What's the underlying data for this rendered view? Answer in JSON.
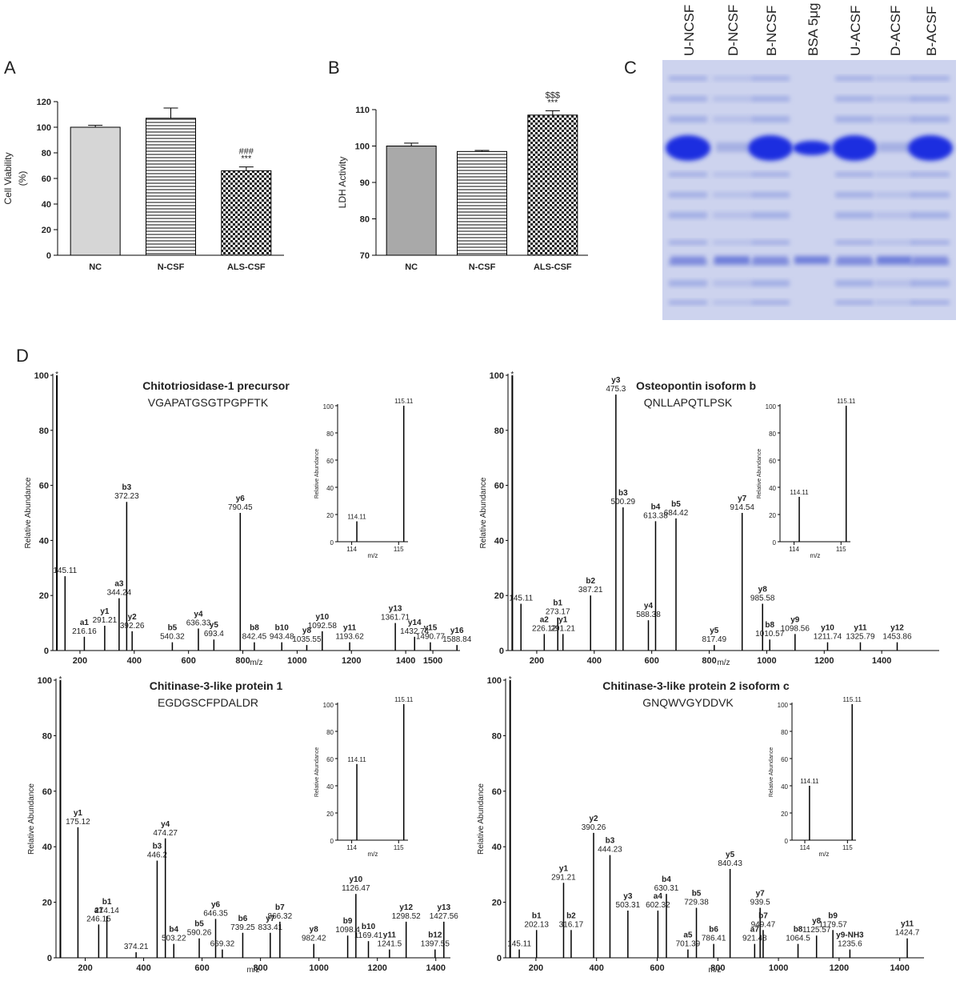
{
  "panel_labels": [
    "A",
    "B",
    "C",
    "D"
  ],
  "gel_lanes": [
    "U-NCSF",
    "D-NCSF",
    "B-NCSF",
    "BSA 5μg",
    "U-ACSF",
    "D-ACSF",
    "B-ACSF"
  ],
  "chart_data": [
    {
      "type": "bar",
      "ylabel": [
        "Cell Viability",
        "(%)"
      ],
      "categories": [
        "NC",
        "N-CSF",
        "ALS-CSF"
      ],
      "values": [
        100,
        107,
        66
      ],
      "errors": [
        1.5,
        8,
        3
      ],
      "color": "#d6d6d6",
      "patterns": [
        "solid",
        "hstripe",
        "checker"
      ],
      "marks_above": [
        [],
        [],
        [
          "###",
          "***"
        ]
      ],
      "ylim": [
        0,
        120
      ],
      "yticks": [
        0,
        20,
        40,
        60,
        80,
        100,
        120
      ]
    },
    {
      "type": "bar",
      "ylabel": [
        "LDH Activity"
      ],
      "categories": [
        "NC",
        "N-CSF",
        "ALS-CSF"
      ],
      "values": [
        100,
        98.5,
        108.5
      ],
      "errors": [
        0.8,
        0.3,
        1.2
      ],
      "color": "#a9a9a9",
      "patterns": [
        "solid",
        "hstripe",
        "checker"
      ],
      "marks_above": [
        [],
        [],
        [
          "$$$",
          "***"
        ]
      ],
      "ylim": [
        70,
        110
      ],
      "yticks": [
        70,
        80,
        90,
        100,
        110
      ]
    },
    {
      "type": "stem",
      "title": "Chitotriosidase-1 precursor",
      "subtitle": "VGAPATGSGTPGPFTK",
      "xlabel": "m/z",
      "ylabel": "Relative Abundance",
      "reporter": {
        "x": 115,
        "y": 100,
        "label": "*"
      },
      "xlim": [
        100,
        1600
      ],
      "ylim": [
        0,
        100
      ],
      "xticks": [
        200,
        400,
        600,
        800,
        1000,
        1200,
        1400,
        1500
      ],
      "yticks": [
        0,
        20,
        40,
        60,
        80,
        100
      ],
      "peaks": [
        {
          "x": 145.11,
          "y": 27
        },
        {
          "ion": "a1",
          "x": 216.16,
          "y": 5
        },
        {
          "ion": "y1",
          "x": 291.21,
          "y": 9
        },
        {
          "ion": "a3",
          "x": 344.24,
          "y": 19
        },
        {
          "ion": "b3",
          "x": 372.23,
          "y": 54
        },
        {
          "ion": "y2",
          "x": 392.26,
          "y": 7
        },
        {
          "ion": "b5",
          "x": 540.32,
          "y": 3
        },
        {
          "ion": "y4",
          "x": 636.33,
          "y": 8
        },
        {
          "ion": "y5",
          "x": 693.4,
          "y": 4
        },
        {
          "ion": "y6",
          "x": 790.45,
          "y": 50
        },
        {
          "ion": "b8",
          "x": 842.45,
          "y": 3
        },
        {
          "ion": "b10",
          "x": 943.48,
          "y": 3
        },
        {
          "ion": "y8",
          "x": 1035.55,
          "y": 2
        },
        {
          "ion": "y10",
          "x": 1092.58,
          "y": 7
        },
        {
          "ion": "y11",
          "x": 1193.62,
          "y": 3
        },
        {
          "ion": "y13",
          "x": 1361.71,
          "y": 10
        },
        {
          "ion": "y14",
          "x": 1432.74,
          "y": 5
        },
        {
          "ion": "y15",
          "x": 1490.77,
          "y": 3
        },
        {
          "ion": "y16",
          "x": 1588.84,
          "y": 2
        }
      ]
    },
    {
      "type": "stem",
      "title": "Osteopontin isoform b",
      "subtitle": "QNLLAPQTLPSK",
      "xlabel": "m/z",
      "ylabel": "Relative Abundance",
      "reporter": {
        "x": 115,
        "y": 100,
        "label": "*"
      },
      "xlim": [
        100,
        1600
      ],
      "ylim": [
        0,
        100
      ],
      "xticks": [
        200,
        400,
        600,
        800,
        1000,
        1200,
        1400
      ],
      "yticks": [
        0,
        20,
        40,
        60,
        80,
        100
      ],
      "peaks": [
        {
          "x": 145.11,
          "y": 17
        },
        {
          "ion": "a2",
          "x": 226.12,
          "y": 6
        },
        {
          "ion": "b1",
          "x": 273.17,
          "y": 12
        },
        {
          "ion": "y1",
          "x": 291.21,
          "y": 6
        },
        {
          "ion": "b2",
          "x": 387.21,
          "y": 20
        },
        {
          "ion": "y3",
          "x": 475.3,
          "y": 93
        },
        {
          "ion": "b3",
          "x": 500.29,
          "y": 52
        },
        {
          "ion": "y4",
          "x": 588.38,
          "y": 11
        },
        {
          "ion": "b4",
          "x": 613.38,
          "y": 47
        },
        {
          "ion": "b5",
          "x": 684.42,
          "y": 48
        },
        {
          "ion": "y5",
          "x": 817.49,
          "y": 2
        },
        {
          "ion": "y7",
          "x": 914.54,
          "y": 50
        },
        {
          "ion": "y8",
          "x": 985.58,
          "y": 17
        },
        {
          "ion": "b8",
          "x": 1010.57,
          "y": 4
        },
        {
          "ion": "y9",
          "x": 1098.56,
          "y": 6
        },
        {
          "ion": "y10",
          "x": 1211.74,
          "y": 3
        },
        {
          "ion": "y11",
          "x": 1325.79,
          "y": 3
        },
        {
          "ion": "y12",
          "x": 1453.86,
          "y": 3
        }
      ]
    },
    {
      "type": "stem",
      "title": "Chitinase-3-like protein 1",
      "subtitle": "EGDGSCFPDALDR",
      "xlabel": "m/z",
      "ylabel": "Relative Abundance",
      "reporter": {
        "x": 115,
        "y": 100,
        "label": "*"
      },
      "xlim": [
        100,
        1450
      ],
      "ylim": [
        0,
        100
      ],
      "xticks": [
        200,
        400,
        600,
        800,
        1000,
        1200,
        1400
      ],
      "yticks": [
        0,
        20,
        40,
        60,
        80,
        100
      ],
      "peaks": [
        {
          "ion": "y1",
          "x": 175.12,
          "y": 47
        },
        {
          "ion": "a1",
          "x": 246.15,
          "y": 12
        },
        {
          "ion": "b1",
          "x": 274.14,
          "y": 15
        },
        {
          "x": 374.21,
          "y": 2
        },
        {
          "ion": "b3",
          "x": 446.2,
          "y": 35
        },
        {
          "ion": "y4",
          "x": 474.27,
          "y": 43
        },
        {
          "ion": "b4",
          "x": 503.22,
          "y": 5
        },
        {
          "ion": "b5",
          "x": 590.26,
          "y": 7
        },
        {
          "ion": "y6",
          "x": 646.35,
          "y": 14
        },
        {
          "x": 669.32,
          "y": 3
        },
        {
          "ion": "b6",
          "x": 739.25,
          "y": 9
        },
        {
          "ion": "y7",
          "x": 833.41,
          "y": 9
        },
        {
          "ion": "b7",
          "x": 866.32,
          "y": 13
        },
        {
          "ion": "y8",
          "x": 982.42,
          "y": 5
        },
        {
          "ion": "b9",
          "x": 1098.4,
          "y": 8
        },
        {
          "ion": "y10",
          "x": 1126.47,
          "y": 23
        },
        {
          "ion": "b10",
          "x": 1169.41,
          "y": 6
        },
        {
          "ion": "y11",
          "x": 1241.5,
          "y": 3
        },
        {
          "ion": "y12",
          "x": 1298.52,
          "y": 13
        },
        {
          "ion": "b12",
          "x": 1397.55,
          "y": 3
        },
        {
          "ion": "y13",
          "x": 1427.56,
          "y": 13
        }
      ]
    },
    {
      "type": "stem",
      "title": "Chitinase-3-like protein 2 isoform c",
      "subtitle": "GNQWVGYDDVK",
      "xlabel": "m/z",
      "ylabel": "Relative Abundance",
      "reporter": {
        "x": 115,
        "y": 100,
        "label": "*"
      },
      "xlim": [
        100,
        1480
      ],
      "ylim": [
        0,
        100
      ],
      "xticks": [
        200,
        400,
        600,
        800,
        1000,
        1200,
        1400
      ],
      "yticks": [
        0,
        20,
        40,
        60,
        80,
        100
      ],
      "peaks": [
        {
          "x": 145.11,
          "y": 3
        },
        {
          "ion": "b1",
          "x": 202.13,
          "y": 10
        },
        {
          "ion": "y1",
          "x": 291.21,
          "y": 27
        },
        {
          "ion": "b2",
          "x": 316.17,
          "y": 10
        },
        {
          "ion": "y2",
          "x": 390.26,
          "y": 45
        },
        {
          "ion": "b3",
          "x": 444.23,
          "y": 37
        },
        {
          "ion": "y3",
          "x": 503.31,
          "y": 17
        },
        {
          "ion": "a4",
          "x": 602.32,
          "y": 17
        },
        {
          "ion": "b4",
          "x": 630.31,
          "y": 23
        },
        {
          "ion": "a5",
          "x": 701.39,
          "y": 3
        },
        {
          "ion": "b5",
          "x": 729.38,
          "y": 18
        },
        {
          "ion": "b6",
          "x": 786.41,
          "y": 5
        },
        {
          "ion": "y5",
          "x": 840.43,
          "y": 32
        },
        {
          "ion": "a7",
          "x": 921.48,
          "y": 5
        },
        {
          "ion": "y7",
          "x": 939.5,
          "y": 18
        },
        {
          "ion": "b7",
          "x": 949.47,
          "y": 10
        },
        {
          "ion": "b8",
          "x": 1064.5,
          "y": 5
        },
        {
          "ion": "y8",
          "x": 1125.57,
          "y": 8
        },
        {
          "ion": "b9",
          "x": 1179.57,
          "y": 10
        },
        {
          "ion": "y9-NH3",
          "x": 1235.6,
          "y": 3
        },
        {
          "ion": "y11",
          "x": 1424.7,
          "y": 7
        }
      ]
    },
    {
      "type": "inset",
      "xlabel": "m/z",
      "ylabel": "Relative Abundance",
      "xlim": [
        113.7,
        115.2
      ],
      "ylim": [
        0,
        100
      ],
      "xticks": [
        114,
        115
      ],
      "yticks": [
        0,
        20,
        40,
        60,
        80,
        100
      ],
      "peaks": [
        {
          "x": 114.11,
          "y": 15
        },
        {
          "x": 115.11,
          "y": 100
        }
      ]
    },
    {
      "type": "inset",
      "xlabel": "m/z",
      "ylabel": "Relative Abundance",
      "xlim": [
        113.7,
        115.2
      ],
      "ylim": [
        0,
        100
      ],
      "xticks": [
        114,
        115
      ],
      "yticks": [
        0,
        20,
        40,
        60,
        80,
        100
      ],
      "peaks": [
        {
          "x": 114.11,
          "y": 33
        },
        {
          "x": 115.11,
          "y": 100
        }
      ]
    },
    {
      "type": "inset",
      "xlabel": "m/z",
      "ylabel": "Relative Abundance",
      "xlim": [
        113.7,
        115.2
      ],
      "ylim": [
        0,
        100
      ],
      "xticks": [
        114,
        115
      ],
      "yticks": [
        0,
        20,
        40,
        60,
        80,
        100
      ],
      "peaks": [
        {
          "x": 114.11,
          "y": 56
        },
        {
          "x": 115.11,
          "y": 100
        }
      ]
    },
    {
      "type": "inset",
      "xlabel": "m/z",
      "ylabel": "Relative Abundance",
      "xlim": [
        113.7,
        115.2
      ],
      "ylim": [
        0,
        100
      ],
      "xticks": [
        114,
        115
      ],
      "yticks": [
        0,
        20,
        40,
        60,
        80,
        100
      ],
      "peaks": [
        {
          "x": 114.11,
          "y": 40
        },
        {
          "x": 115.11,
          "y": 100
        }
      ]
    }
  ]
}
